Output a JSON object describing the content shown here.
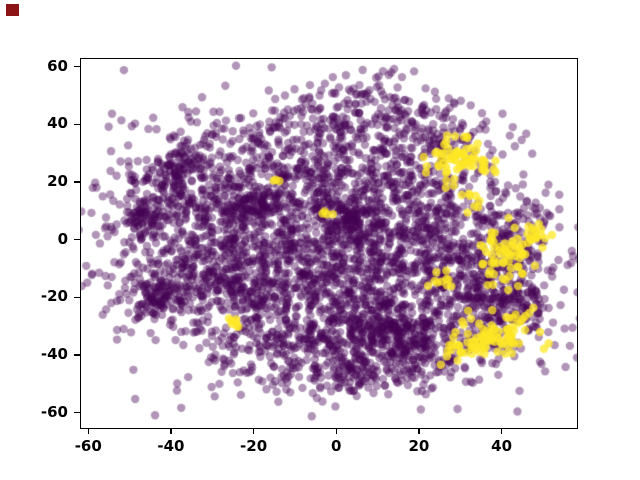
{
  "figure": {
    "background": "#ffffff",
    "corner_marker_color": "#8c1417"
  },
  "chart_data": {
    "type": "scatter",
    "title": "",
    "xlabel": "",
    "ylabel": "",
    "grid": false,
    "legend": null,
    "xlim": [
      -62,
      58
    ],
    "ylim": [
      -65,
      63
    ],
    "xticks": [
      -60,
      -40,
      -20,
      0,
      20,
      40
    ],
    "yticks": [
      -60,
      -40,
      -20,
      0,
      20,
      40,
      60
    ],
    "marker_radius_px": 4.2,
    "seed": 42,
    "description": "2-D embedding scatter (t-SNE/UMAP style) of ~4700 points; dominant dark-purple class forming one large irregular blob with dense sub-clusters, and a small yellow class concentrated on the right side (top-right ~(30,28), mid-right ~(41,-7), bottom-right ~(38,-33)) with a few stray yellow points inside the purple mass.",
    "series": [
      {
        "name": "class-0-purple",
        "color": "#440154",
        "alpha": 0.42,
        "clusters": [
          {
            "cx": -15,
            "cy": 5,
            "sx": 22,
            "sy": 18,
            "n": 900
          },
          {
            "cx": 5,
            "cy": -20,
            "sx": 18,
            "sy": 14,
            "n": 650
          },
          {
            "cx": 0,
            "cy": 25,
            "sx": 18,
            "sy": 12,
            "n": 450
          },
          {
            "cx": -30,
            "cy": -12,
            "sx": 12,
            "sy": 10,
            "n": 300
          },
          {
            "cx": 20,
            "cy": 5,
            "sx": 12,
            "sy": 14,
            "n": 300
          },
          {
            "cx": 35,
            "cy": -18,
            "sx": 9,
            "sy": 11,
            "n": 260
          },
          {
            "cx": 15,
            "cy": -38,
            "sx": 10,
            "sy": 7,
            "n": 220
          },
          {
            "cx": -8,
            "cy": -38,
            "sx": 12,
            "sy": 7,
            "n": 180
          },
          {
            "cx": 5,
            "cy": 45,
            "sx": 12,
            "sy": 6,
            "n": 120
          },
          {
            "cx": -40,
            "cy": 18,
            "sx": 7,
            "sy": 8,
            "n": 140
          },
          {
            "cx": 42,
            "cy": 3,
            "sx": 6,
            "sy": 8,
            "n": 90
          },
          {
            "cx": -43,
            "cy": -20,
            "sx": 3,
            "sy": 3,
            "n": 70
          },
          {
            "cx": -47,
            "cy": 8,
            "sx": 2.5,
            "sy": 3,
            "n": 55
          },
          {
            "cx": -38,
            "cy": 26,
            "sx": 3,
            "sy": 3,
            "n": 55
          },
          {
            "cx": -20,
            "cy": 12,
            "sx": 3,
            "sy": 2.5,
            "n": 60
          },
          {
            "cx": 4,
            "cy": 8,
            "sx": 3,
            "sy": 3,
            "n": 60
          },
          {
            "cx": 12,
            "cy": -33,
            "sx": 4,
            "sy": 3,
            "n": 80
          },
          {
            "cx": 43,
            "cy": -22,
            "sx": 4,
            "sy": 5,
            "n": 90
          },
          {
            "cx": 2,
            "cy": -47,
            "sx": 5,
            "sy": 3,
            "n": 50
          },
          {
            "cx": 25,
            "cy": 40,
            "sx": 6,
            "sy": 5,
            "n": 60
          },
          {
            "cx": -5,
            "cy": -5,
            "sx": 32,
            "sy": 26,
            "n": 350
          }
        ]
      },
      {
        "name": "class-1-yellow",
        "color": "#FDE725",
        "alpha": 0.75,
        "clusters": [
          {
            "cx": 30,
            "cy": 28,
            "sx": 4,
            "sy": 4,
            "n": 70
          },
          {
            "cx": 41,
            "cy": -7,
            "sx": 3.5,
            "sy": 6,
            "n": 60
          },
          {
            "cx": 47,
            "cy": 2,
            "sx": 2.5,
            "sy": 3,
            "n": 20
          },
          {
            "cx": 38,
            "cy": -33,
            "sx": 4.5,
            "sy": 3.5,
            "n": 70
          },
          {
            "cx": 29,
            "cy": -38,
            "sx": 2.5,
            "sy": 2.5,
            "n": 20
          },
          {
            "cx": 26,
            "cy": -14,
            "sx": 2,
            "sy": 2,
            "n": 10
          },
          {
            "cx": 33,
            "cy": 14,
            "sx": 2,
            "sy": 2,
            "n": 8
          },
          {
            "cx": 44,
            "cy": -27,
            "sx": 2,
            "sy": 2,
            "n": 10
          },
          {
            "cx": -25,
            "cy": -28,
            "sx": 1.2,
            "sy": 1.2,
            "n": 7
          },
          {
            "cx": -3,
            "cy": 10,
            "sx": 0.8,
            "sy": 0.8,
            "n": 4
          },
          {
            "cx": -15,
            "cy": 21,
            "sx": 0.8,
            "sy": 0.8,
            "n": 3
          }
        ]
      }
    ]
  }
}
